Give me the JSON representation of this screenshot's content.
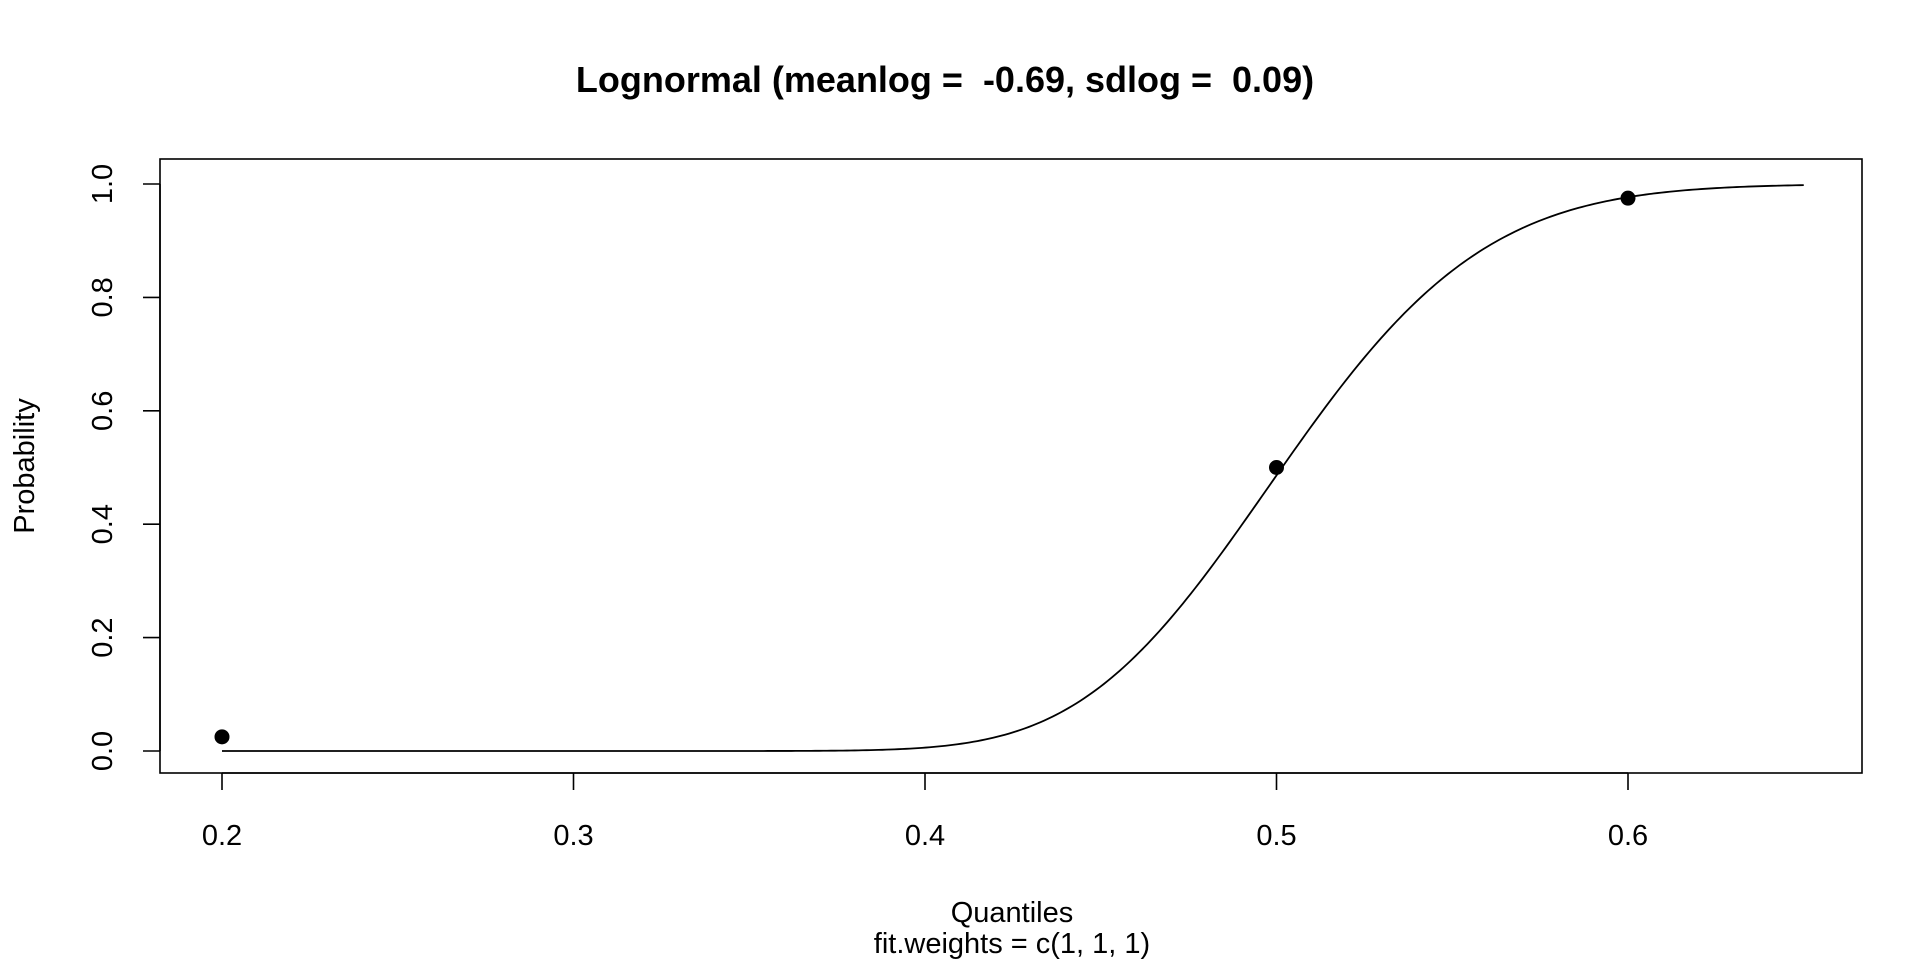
{
  "chart_data": {
    "type": "line",
    "title": "Lognormal (meanlog =  -0.69, sdlog =  0.09)",
    "xlabel": "Quantiles",
    "subtitle": "fit.weights = c(1, 1, 1)",
    "ylabel": "Probability",
    "xlim": [
      0.2,
      0.65
    ],
    "ylim": [
      0.0,
      1.0
    ],
    "x_ticks": [
      0.2,
      0.3,
      0.4,
      0.5,
      0.6
    ],
    "x_tick_labels": [
      "0.2",
      "0.3",
      "0.4",
      "0.5",
      "0.6"
    ],
    "y_ticks": [
      0.0,
      0.2,
      0.4,
      0.6,
      0.8,
      1.0
    ],
    "y_tick_labels": [
      "0.0",
      "0.2",
      "0.4",
      "0.6",
      "0.8",
      "1.0"
    ],
    "series": [
      {
        "type": "line",
        "distribution": "lognormal",
        "meanlog": -0.69,
        "sdlog": 0.09
      },
      {
        "type": "scatter",
        "points": [
          {
            "x": 0.2,
            "y": 0.025
          },
          {
            "x": 0.5,
            "y": 0.5
          },
          {
            "x": 0.6,
            "y": 0.975
          }
        ]
      }
    ],
    "grid": false,
    "legend": "none"
  }
}
